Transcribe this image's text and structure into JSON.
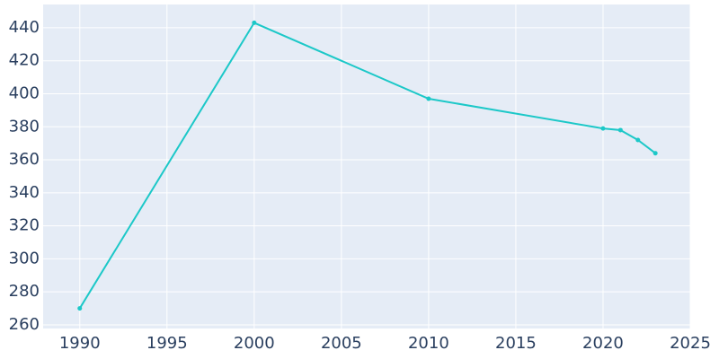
{
  "chart_data": {
    "type": "line",
    "x": [
      1990,
      2000,
      2010,
      2020,
      2021,
      2022,
      2023
    ],
    "series": [
      {
        "color": "#1cc8c8",
        "values": [
          270,
          443,
          397,
          379,
          378,
          372,
          364
        ]
      }
    ],
    "xlim": [
      1987.9,
      2025
    ],
    "ylim": [
      257.8,
      454.1
    ],
    "xticks": [
      1990,
      1995,
      2000,
      2005,
      2010,
      2015,
      2020,
      2025
    ],
    "yticks": [
      260,
      280,
      300,
      320,
      340,
      360,
      380,
      400,
      420,
      440
    ],
    "grid": true
  }
}
